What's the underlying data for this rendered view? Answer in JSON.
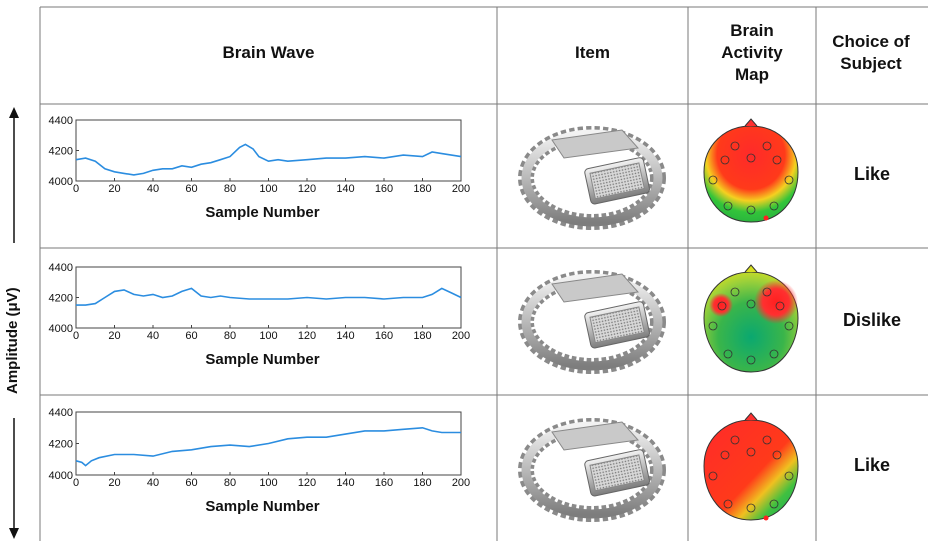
{
  "y_axis_label": "Amplitude (μV)",
  "headers": {
    "brain_wave": "Brain Wave",
    "item": "Item",
    "brain_activity_map": "Brain Activity Map",
    "choice_of_subject": "Choice of Subject"
  },
  "rows": [
    {
      "choice": "Like"
    },
    {
      "choice": "Dislike"
    },
    {
      "choice": "Like"
    }
  ],
  "colors": {
    "wave": "#2b8de0",
    "grid": "#999999"
  },
  "chart_data": [
    {
      "type": "line",
      "xlabel": "Sample Number",
      "xlim": [
        0,
        200
      ],
      "ylim": [
        4000,
        4400
      ],
      "x_ticks": [
        0,
        20,
        40,
        60,
        80,
        100,
        120,
        140,
        160,
        180,
        200
      ],
      "y_ticks": [
        4000,
        4200,
        4400
      ],
      "series": [
        {
          "x": [
            0,
            5,
            10,
            15,
            20,
            25,
            30,
            35,
            40,
            45,
            50,
            55,
            60,
            65,
            70,
            75,
            80,
            85,
            88,
            92,
            95,
            100,
            105,
            110,
            120,
            130,
            140,
            150,
            160,
            170,
            180,
            185,
            190,
            195,
            200
          ],
          "values": [
            4140,
            4150,
            4130,
            4080,
            4060,
            4050,
            4040,
            4050,
            4070,
            4080,
            4080,
            4100,
            4090,
            4110,
            4120,
            4140,
            4160,
            4220,
            4240,
            4210,
            4160,
            4130,
            4140,
            4130,
            4140,
            4150,
            4150,
            4160,
            4150,
            4170,
            4160,
            4190,
            4180,
            4170,
            4160
          ]
        }
      ]
    },
    {
      "type": "line",
      "xlabel": "Sample Number",
      "xlim": [
        0,
        200
      ],
      "ylim": [
        4000,
        4400
      ],
      "x_ticks": [
        0,
        20,
        40,
        60,
        80,
        100,
        120,
        140,
        160,
        180,
        200
      ],
      "y_ticks": [
        4000,
        4200,
        4400
      ],
      "series": [
        {
          "x": [
            0,
            5,
            10,
            15,
            20,
            25,
            30,
            35,
            40,
            45,
            50,
            55,
            60,
            65,
            70,
            75,
            80,
            90,
            100,
            110,
            120,
            130,
            140,
            150,
            160,
            170,
            180,
            185,
            190,
            195,
            200
          ],
          "values": [
            4150,
            4150,
            4160,
            4200,
            4240,
            4250,
            4220,
            4210,
            4220,
            4200,
            4210,
            4240,
            4260,
            4210,
            4200,
            4210,
            4200,
            4190,
            4190,
            4190,
            4200,
            4190,
            4200,
            4200,
            4190,
            4200,
            4200,
            4220,
            4260,
            4230,
            4200
          ]
        }
      ]
    },
    {
      "type": "line",
      "xlabel": "Sample Number",
      "xlim": [
        0,
        200
      ],
      "ylim": [
        4000,
        4400
      ],
      "x_ticks": [
        0,
        20,
        40,
        60,
        80,
        100,
        120,
        140,
        160,
        180,
        200
      ],
      "y_ticks": [
        4000,
        4200,
        4400
      ],
      "series": [
        {
          "x": [
            0,
            3,
            5,
            8,
            12,
            20,
            30,
            40,
            50,
            60,
            70,
            80,
            90,
            100,
            110,
            120,
            130,
            140,
            150,
            160,
            170,
            180,
            185,
            190,
            200
          ],
          "values": [
            4090,
            4080,
            4060,
            4090,
            4110,
            4130,
            4130,
            4120,
            4150,
            4160,
            4180,
            4190,
            4180,
            4200,
            4230,
            4240,
            4240,
            4260,
            4280,
            4280,
            4290,
            4300,
            4280,
            4270,
            4270
          ]
        }
      ]
    }
  ]
}
